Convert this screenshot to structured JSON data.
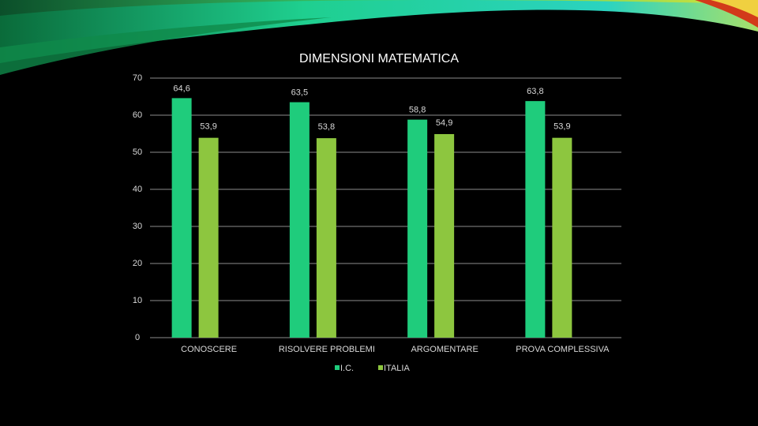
{
  "chart_data": {
    "type": "bar",
    "title": "DIMENSIONI MATEMATICA",
    "categories": [
      "CONOSCERE",
      "RISOLVERE PROBLEMI",
      "ARGOMENTARE",
      "PROVA COMPLESSIVA"
    ],
    "series": [
      {
        "name": "I.C.",
        "color": "#1fcc7c",
        "values": [
          64.6,
          63.5,
          58.8,
          63.8
        ],
        "value_labels": [
          "64,6",
          "63,5",
          "58,8",
          "63,8"
        ]
      },
      {
        "name": "ITALIA",
        "color": "#8dc63f",
        "values": [
          53.9,
          53.8,
          54.9,
          53.9
        ],
        "value_labels": [
          "53,9",
          "53,8",
          "54,9",
          "53,9"
        ]
      }
    ],
    "ylim": [
      0,
      70
    ],
    "yticks": [
      0,
      10,
      20,
      30,
      40,
      50,
      60,
      70
    ],
    "grid": true,
    "legend": "bottom"
  }
}
